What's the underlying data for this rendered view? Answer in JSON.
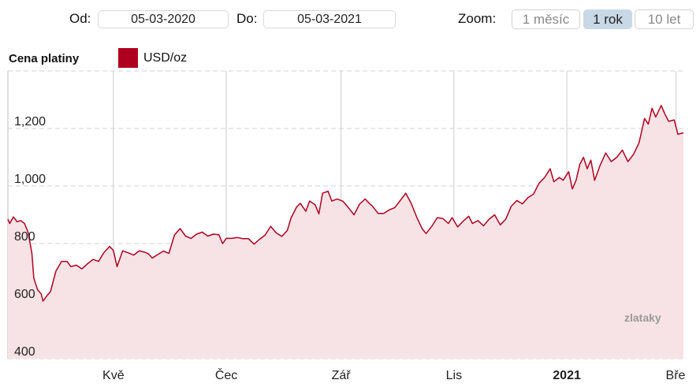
{
  "controls": {
    "from_label": "Od:",
    "from_value": "05-03-2020",
    "to_label": "Do:",
    "to_value": "05-03-2021",
    "zoom_label": "Zoom:",
    "zoom_options": [
      {
        "label": "1 měsíc",
        "active": false
      },
      {
        "label": "1 rok",
        "active": true
      },
      {
        "label": "10 let",
        "active": false
      }
    ]
  },
  "legend": {
    "title": "Cena platiny",
    "swatch_color": "#b00020",
    "series_label": "USD/oz"
  },
  "watermark": "zlataky",
  "colors": {
    "line": "#b00020",
    "fill": "#f7e3e5",
    "grid": "#d0d0d0"
  },
  "chart_data": {
    "type": "area",
    "title": "",
    "xlabel": "",
    "ylabel": "",
    "ylim": [
      400,
      1300
    ],
    "yticks": [
      400,
      600,
      800,
      1000,
      1200
    ],
    "ytick_labels": [
      "400",
      "600",
      "800",
      "1,000",
      "1,200"
    ],
    "xticks": [
      {
        "label": "Kvě",
        "date": "2020-05-01",
        "bold": false
      },
      {
        "label": "Čec",
        "date": "2020-07-01",
        "bold": false
      },
      {
        "label": "Zář",
        "date": "2020-09-01",
        "bold": false
      },
      {
        "label": "Lis",
        "date": "2020-11-01",
        "bold": false
      },
      {
        "label": "2021",
        "date": "2021-01-01",
        "bold": true
      },
      {
        "label": "Bře",
        "date": "2021-03-01",
        "bold": false
      }
    ],
    "series": [
      {
        "name": "USD/oz",
        "points": [
          [
            "2020-03-05",
            885
          ],
          [
            "2020-03-06",
            870
          ],
          [
            "2020-03-08",
            893
          ],
          [
            "2020-03-10",
            876
          ],
          [
            "2020-03-12",
            880
          ],
          [
            "2020-03-14",
            870
          ],
          [
            "2020-03-16",
            838
          ],
          [
            "2020-03-18",
            765
          ],
          [
            "2020-03-19",
            680
          ],
          [
            "2020-03-21",
            640
          ],
          [
            "2020-03-23",
            625
          ],
          [
            "2020-03-24",
            600
          ],
          [
            "2020-03-26",
            618
          ],
          [
            "2020-03-28",
            633
          ],
          [
            "2020-03-31",
            705
          ],
          [
            "2020-04-03",
            738
          ],
          [
            "2020-04-06",
            738
          ],
          [
            "2020-04-08",
            720
          ],
          [
            "2020-04-11",
            725
          ],
          [
            "2020-04-14",
            712
          ],
          [
            "2020-04-17",
            730
          ],
          [
            "2020-04-20",
            745
          ],
          [
            "2020-04-23",
            738
          ],
          [
            "2020-04-26",
            770
          ],
          [
            "2020-04-29",
            790
          ],
          [
            "2020-05-01",
            776
          ],
          [
            "2020-05-03",
            720
          ],
          [
            "2020-05-06",
            775
          ],
          [
            "2020-05-09",
            768
          ],
          [
            "2020-05-12",
            760
          ],
          [
            "2020-05-15",
            775
          ],
          [
            "2020-05-18",
            770
          ],
          [
            "2020-05-20",
            764
          ],
          [
            "2020-05-22",
            750
          ],
          [
            "2020-05-25",
            762
          ],
          [
            "2020-05-28",
            774
          ],
          [
            "2020-05-31",
            766
          ],
          [
            "2020-06-03",
            830
          ],
          [
            "2020-06-06",
            852
          ],
          [
            "2020-06-09",
            826
          ],
          [
            "2020-06-12",
            818
          ],
          [
            "2020-06-15",
            833
          ],
          [
            "2020-06-18",
            840
          ],
          [
            "2020-06-21",
            826
          ],
          [
            "2020-06-24",
            833
          ],
          [
            "2020-06-27",
            831
          ],
          [
            "2020-06-29",
            800
          ],
          [
            "2020-07-01",
            818
          ],
          [
            "2020-07-04",
            818
          ],
          [
            "2020-07-07",
            821
          ],
          [
            "2020-07-10",
            817
          ],
          [
            "2020-07-13",
            817
          ],
          [
            "2020-07-16",
            798
          ],
          [
            "2020-07-19",
            815
          ],
          [
            "2020-07-22",
            830
          ],
          [
            "2020-07-25",
            860
          ],
          [
            "2020-07-28",
            837
          ],
          [
            "2020-07-31",
            825
          ],
          [
            "2020-08-03",
            846
          ],
          [
            "2020-08-05",
            889
          ],
          [
            "2020-08-08",
            927
          ],
          [
            "2020-08-10",
            940
          ],
          [
            "2020-08-13",
            912
          ],
          [
            "2020-08-15",
            948
          ],
          [
            "2020-08-18",
            935
          ],
          [
            "2020-08-20",
            903
          ],
          [
            "2020-08-22",
            975
          ],
          [
            "2020-08-25",
            982
          ],
          [
            "2020-08-27",
            948
          ],
          [
            "2020-08-30",
            955
          ],
          [
            "2020-09-02",
            947
          ],
          [
            "2020-09-05",
            925
          ],
          [
            "2020-09-08",
            900
          ],
          [
            "2020-09-11",
            937
          ],
          [
            "2020-09-14",
            955
          ],
          [
            "2020-09-16",
            942
          ],
          [
            "2020-09-18",
            930
          ],
          [
            "2020-09-21",
            905
          ],
          [
            "2020-09-24",
            905
          ],
          [
            "2020-09-27",
            917
          ],
          [
            "2020-09-30",
            925
          ],
          [
            "2020-10-03",
            950
          ],
          [
            "2020-10-06",
            975
          ],
          [
            "2020-10-09",
            938
          ],
          [
            "2020-10-12",
            890
          ],
          [
            "2020-10-15",
            850
          ],
          [
            "2020-10-17",
            835
          ],
          [
            "2020-10-20",
            860
          ],
          [
            "2020-10-23",
            890
          ],
          [
            "2020-10-26",
            887
          ],
          [
            "2020-10-29",
            870
          ],
          [
            "2020-10-31",
            890
          ],
          [
            "2020-11-03",
            858
          ],
          [
            "2020-11-06",
            878
          ],
          [
            "2020-11-09",
            895
          ],
          [
            "2020-11-11",
            870
          ],
          [
            "2020-11-14",
            880
          ],
          [
            "2020-11-17",
            862
          ],
          [
            "2020-11-20",
            885
          ],
          [
            "2020-11-23",
            900
          ],
          [
            "2020-11-26",
            865
          ],
          [
            "2020-11-29",
            885
          ],
          [
            "2020-12-02",
            930
          ],
          [
            "2020-12-05",
            950
          ],
          [
            "2020-12-08",
            938
          ],
          [
            "2020-12-11",
            960
          ],
          [
            "2020-12-14",
            972
          ],
          [
            "2020-12-17",
            1010
          ],
          [
            "2020-12-20",
            1030
          ],
          [
            "2020-12-23",
            1060
          ],
          [
            "2020-12-25",
            1015
          ],
          [
            "2020-12-28",
            1030
          ],
          [
            "2020-12-30",
            1020
          ],
          [
            "2021-01-02",
            1050
          ],
          [
            "2021-01-04",
            990
          ],
          [
            "2021-01-06",
            1020
          ],
          [
            "2021-01-08",
            1075
          ],
          [
            "2021-01-10",
            1100
          ],
          [
            "2021-01-12",
            1060
          ],
          [
            "2021-01-14",
            1090
          ],
          [
            "2021-01-16",
            1020
          ],
          [
            "2021-01-19",
            1072
          ],
          [
            "2021-01-22",
            1115
          ],
          [
            "2021-01-25",
            1085
          ],
          [
            "2021-01-28",
            1100
          ],
          [
            "2021-01-31",
            1125
          ],
          [
            "2021-02-03",
            1085
          ],
          [
            "2021-02-06",
            1110
          ],
          [
            "2021-02-09",
            1150
          ],
          [
            "2021-02-12",
            1235
          ],
          [
            "2021-02-14",
            1215
          ],
          [
            "2021-02-16",
            1270
          ],
          [
            "2021-02-18",
            1240
          ],
          [
            "2021-02-21",
            1280
          ],
          [
            "2021-02-23",
            1250
          ],
          [
            "2021-02-25",
            1225
          ],
          [
            "2021-02-28",
            1230
          ],
          [
            "2021-03-02",
            1180
          ],
          [
            "2021-03-05",
            1185
          ]
        ]
      }
    ],
    "x_range": [
      "2020-03-05",
      "2021-03-05"
    ],
    "grid": true,
    "legend_position": "top-left"
  }
}
